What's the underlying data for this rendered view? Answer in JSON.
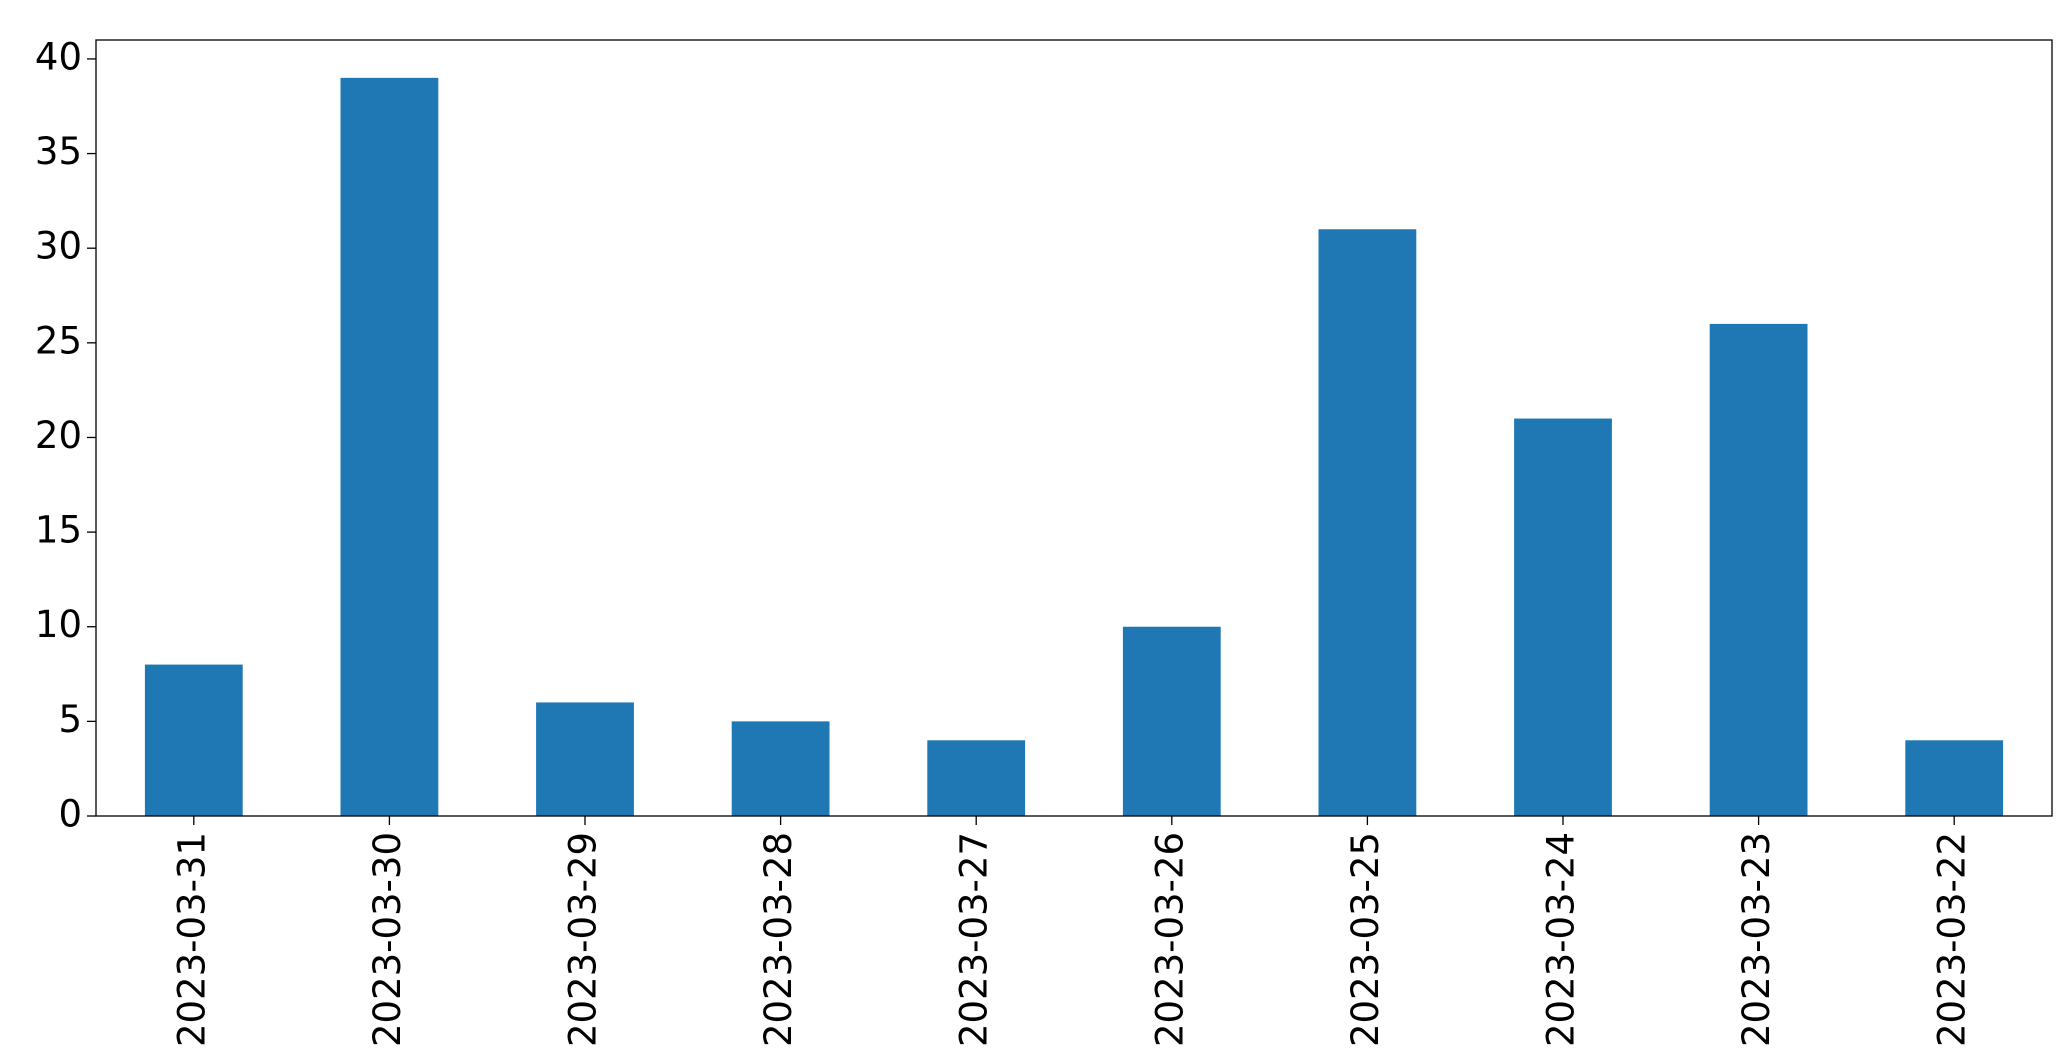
{
  "chart_data": {
    "type": "bar",
    "categories": [
      "2023-03-31",
      "2023-03-30",
      "2023-03-29",
      "2023-03-28",
      "2023-03-27",
      "2023-03-26",
      "2023-03-25",
      "2023-03-24",
      "2023-03-23",
      "2023-03-22"
    ],
    "values": [
      8,
      39,
      6,
      5,
      4,
      10,
      31,
      21,
      26,
      4
    ],
    "color": "#1f77b4",
    "ylim": [
      0,
      41
    ],
    "yticks": [
      0,
      5,
      10,
      15,
      20,
      25,
      30,
      35,
      40
    ],
    "grid": false
  }
}
